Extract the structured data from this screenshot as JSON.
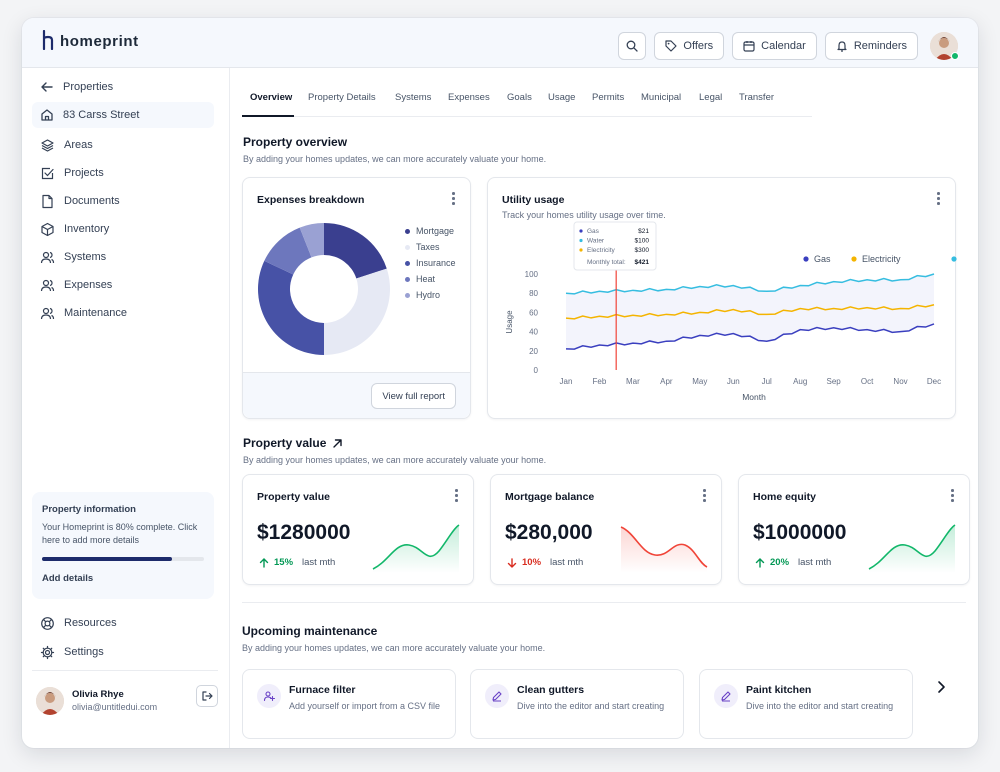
{
  "brand": {
    "name": "homeprint"
  },
  "topbar": {
    "offers_label": "Offers",
    "calendar_label": "Calendar",
    "reminders_label": "Reminders"
  },
  "sidebar": {
    "back_label": "Properties",
    "property_label": "83 Carss Street",
    "items": [
      {
        "label": "Areas",
        "icon": "layers-icon"
      },
      {
        "label": "Projects",
        "icon": "check-square-icon"
      },
      {
        "label": "Documents",
        "icon": "file-icon"
      },
      {
        "label": "Inventory",
        "icon": "box-icon"
      },
      {
        "label": "Systems",
        "icon": "users-icon"
      },
      {
        "label": "Expenses",
        "icon": "users-icon"
      },
      {
        "label": "Maintenance",
        "icon": "users-icon"
      }
    ],
    "info": {
      "title": "Property information",
      "text": "Your Homeprint is 80% complete. Click here to add more details",
      "progress": 0.8,
      "link": "Add details"
    },
    "resources_label": "Resources",
    "settings_label": "Settings",
    "user": {
      "name": "Olivia Rhye",
      "email": "olivia@untitledui.com"
    }
  },
  "tabs": [
    "Overview",
    "Property Details",
    "Systems",
    "Expenses",
    "Goals",
    "Usage",
    "Permits",
    "Municipal",
    "Legal",
    "Transfer"
  ],
  "overview": {
    "title": "Property overview",
    "subtitle": "By adding your homes updates, we can more accurately valuate your home."
  },
  "expenses_card": {
    "title": "Expenses breakdown",
    "button": "View full report",
    "colors": [
      "#3a3f8f",
      "#e6e9f4",
      "#4752a6",
      "#6d77bd",
      "#9aa1d3"
    ]
  },
  "utility_card": {
    "title": "Utility usage",
    "subtitle": "Track your homes utility usage over time.",
    "tooltip": {
      "rows": [
        {
          "label": "Gas",
          "value": "$21",
          "color": "#3a3fbf"
        },
        {
          "label": "Water",
          "value": "$100",
          "color": "#36bde0"
        },
        {
          "label": "Electricity",
          "value": "$300",
          "color": "#f4b400"
        }
      ],
      "total_label": "Monthly total:",
      "total_value": "$421"
    }
  },
  "property_value_section": {
    "title": "Property value",
    "subtitle": "By adding your homes updates, we can more accurately valuate your home."
  },
  "value_cards": [
    {
      "title": "Property value",
      "value": "$1280000",
      "pct": "15%",
      "direction": "up",
      "period": "last mth",
      "color": "#12b76a"
    },
    {
      "title": "Mortgage balance",
      "value": "$280,000",
      "pct": "10%",
      "direction": "down",
      "period": "last mth",
      "color": "#f04438"
    },
    {
      "title": "Home equity",
      "value": "$1000000",
      "pct": "20%",
      "direction": "up",
      "period": "last mth",
      "color": "#12b76a"
    }
  ],
  "maintenance": {
    "title": "Upcoming maintenance",
    "subtitle": "By adding your homes updates, we can more accurately valuate your home.",
    "items": [
      {
        "title": "Furnace filter",
        "text": "Add yourself or import from a CSV file",
        "icon": "user-plus-icon"
      },
      {
        "title": "Clean gutters",
        "text": "Dive into the editor and start creating",
        "icon": "pencil-icon"
      },
      {
        "title": "Paint kitchen",
        "text": "Dive into the editor and start creating",
        "icon": "pencil-icon"
      }
    ]
  },
  "chart_data": [
    {
      "type": "pie",
      "title": "Expenses breakdown",
      "categories": [
        "Mortgage",
        "Taxes",
        "Insurance",
        "Heat",
        "Hydro"
      ],
      "values": [
        20,
        30,
        32,
        12,
        6
      ]
    },
    {
      "type": "line",
      "title": "Utility usage",
      "xlabel": "Month",
      "ylabel": "Usage",
      "ylim": [
        0,
        100
      ],
      "yticks": [
        0,
        20,
        40,
        60,
        80,
        100
      ],
      "categories": [
        "Jan",
        "Feb",
        "Mar",
        "Apr",
        "May",
        "Jun",
        "Jul",
        "Aug",
        "Sep",
        "Oct",
        "Nov",
        "Dec"
      ],
      "legend_position": "top-right",
      "grid": false,
      "series": [
        {
          "name": "Gas",
          "color": "#3a3fbf",
          "values": [
            22,
            26,
            28,
            30,
            36,
            38,
            30,
            42,
            44,
            42,
            40,
            48
          ]
        },
        {
          "name": "Electricity",
          "color": "#f4b400",
          "values": [
            54,
            56,
            57,
            58,
            60,
            63,
            58,
            64,
            64,
            65,
            64,
            68
          ]
        },
        {
          "name": "Water",
          "color": "#36bde0",
          "values": [
            80,
            82,
            83,
            84,
            87,
            88,
            82,
            88,
            92,
            94,
            94,
            100
          ]
        }
      ]
    }
  ]
}
